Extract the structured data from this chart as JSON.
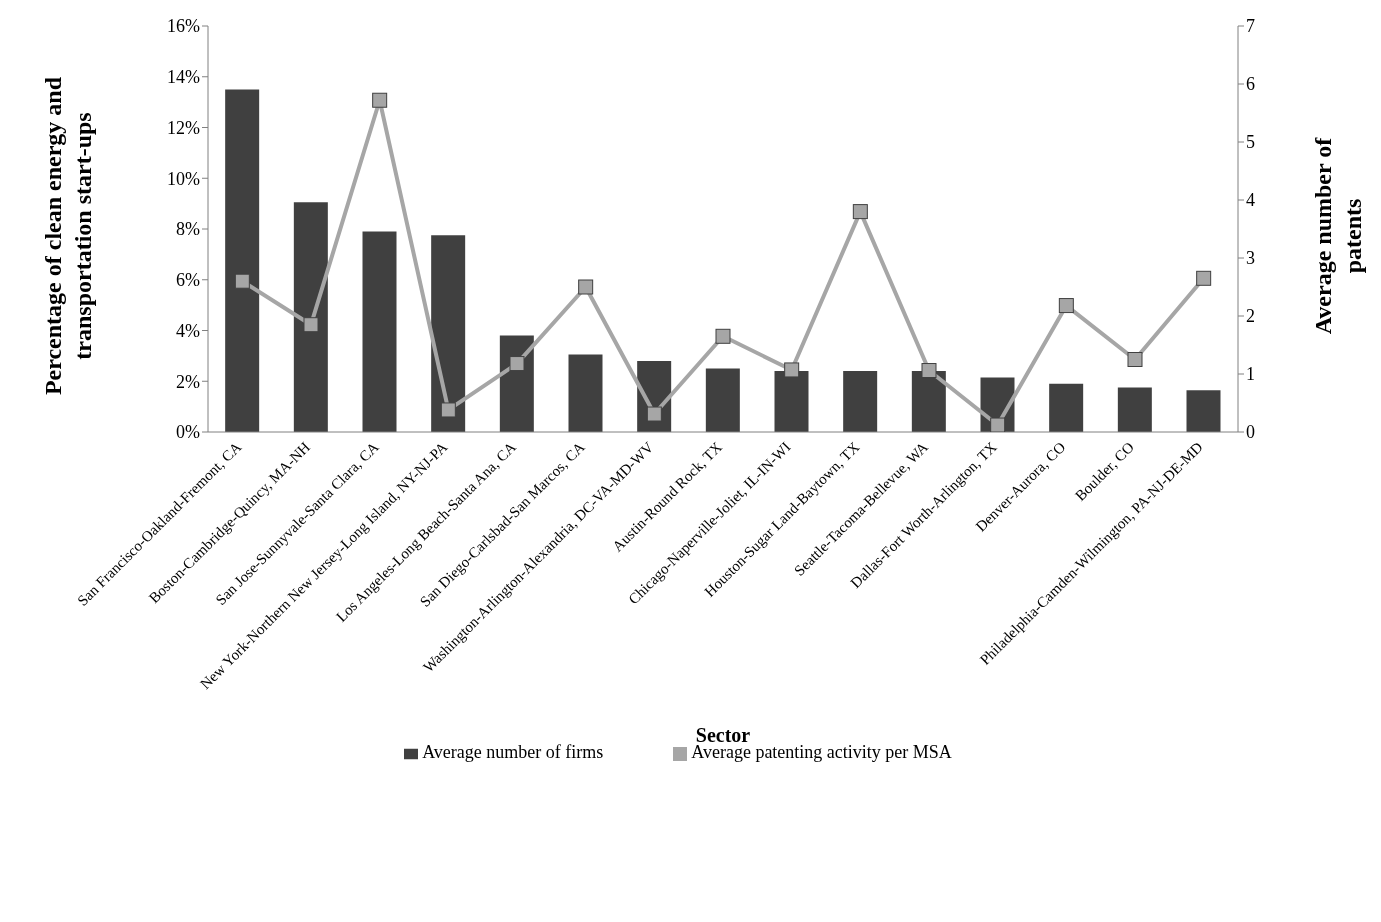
{
  "chart_data": {
    "type": "bar",
    "xlabel": "Sector",
    "ylabel": "Percentage of clean energy and transportation start-ups",
    "y2label": "Average number of patents",
    "categories": [
      "San Francisco-Oakland-Fremont, CA",
      "Boston-Cambridge-Quincy, MA-NH",
      "San Jose-Sunnyvale-Santa Clara, CA",
      "New York-Northern New Jersey-Long Island, NY-NJ-PA",
      "Los Angeles-Long Beach-Santa Ana, CA",
      "San Diego-Carlsbad-San Marcos, CA",
      "Washington-Arlington-Alexandria, DC-VA-MD-WV",
      "Austin-Round Rock, TX",
      "Chicago-Naperville-Joliet, IL-IN-WI",
      "Houston-Sugar Land-Baytown, TX",
      "Seattle-Tacoma-Bellevue, WA",
      "Dallas-Fort Worth-Arlington, TX",
      "Denver-Aurora, CO",
      "Boulder, CO",
      "Philadelphia-Camden-Wilmington, PA-NJ-DE-MD"
    ],
    "series": [
      {
        "name": "Average number of firms",
        "color": "#404040",
        "values": [
          13.5,
          9.05,
          7.9,
          7.75,
          3.8,
          3.05,
          2.8,
          2.5,
          2.4,
          2.4,
          2.4,
          2.15,
          1.9,
          1.75,
          1.65
        ]
      },
      {
        "name": "Average patenting activity per MSA",
        "type": "line",
        "axis": "y2",
        "color": "#a6a6a6",
        "marker": "square",
        "values": [
          2.6,
          1.85,
          5.72,
          0.38,
          1.18,
          2.5,
          0.31,
          1.65,
          1.07,
          3.8,
          1.06,
          0.12,
          2.18,
          1.25,
          2.65
        ]
      }
    ],
    "ylim": [
      0,
      16
    ],
    "yticks": [
      {
        "value": 0,
        "label": "0%"
      },
      {
        "value": 2,
        "label": "2%"
      },
      {
        "value": 4,
        "label": "4%"
      },
      {
        "value": 6,
        "label": "6%"
      },
      {
        "value": 8,
        "label": "8%"
      },
      {
        "value": 10,
        "label": "10%"
      },
      {
        "value": 12,
        "label": "12%"
      },
      {
        "value": 14,
        "label": "14%"
      },
      {
        "value": 16,
        "label": "16%"
      }
    ],
    "y2lim": [
      0,
      7
    ],
    "y2ticks": [
      0,
      1,
      2,
      3,
      4,
      5,
      6,
      7
    ],
    "grid": false,
    "legend": "bottom"
  }
}
